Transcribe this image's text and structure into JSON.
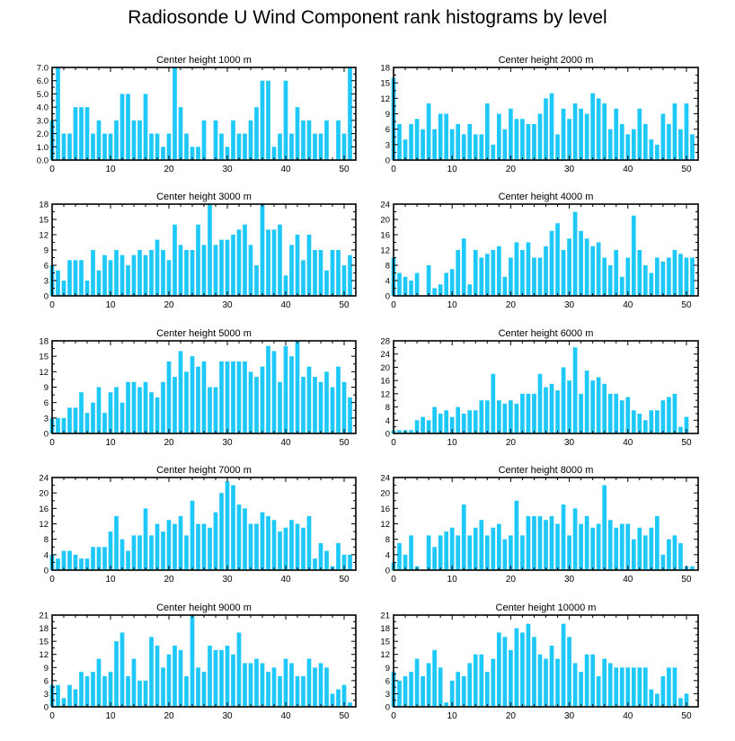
{
  "title": "Radiosonde U Wind Component rank histograms by level",
  "colors": {
    "bar": "#1ec8f8",
    "axis": "#000000",
    "background": "#ffffff"
  },
  "chart_data": [
    {
      "type": "bar",
      "title": "Center height 1000 m",
      "xlim": [
        0,
        52
      ],
      "ylim": [
        0,
        7
      ],
      "xticks": [
        0,
        10,
        20,
        30,
        40,
        50
      ],
      "yticks": [
        0,
        1,
        2,
        3,
        4,
        5,
        6,
        7
      ],
      "ytick_labels": [
        "0.0",
        "1.0",
        "2.0",
        "3.0",
        "4.0",
        "5.0",
        "6.0",
        "7.0"
      ],
      "values": [
        3,
        7,
        2,
        2,
        4,
        4,
        4,
        2,
        3,
        2,
        2,
        3,
        5,
        5,
        3,
        3,
        5,
        2,
        2,
        1,
        2,
        7,
        4,
        2,
        1,
        1,
        3,
        0,
        3,
        2,
        1,
        3,
        2,
        2,
        3,
        4,
        6,
        6,
        1,
        2,
        6,
        2,
        4,
        3,
        3,
        2,
        2,
        3,
        0,
        3,
        2,
        7
      ]
    },
    {
      "type": "bar",
      "title": "Center height 2000 m",
      "xlim": [
        0,
        52
      ],
      "ylim": [
        0,
        18
      ],
      "xticks": [
        0,
        10,
        20,
        30,
        40,
        50
      ],
      "yticks": [
        0,
        3,
        6,
        9,
        12,
        15,
        18
      ],
      "ytick_labels": [
        "0",
        "3",
        "6",
        "9",
        "12",
        "15",
        "18"
      ],
      "values": [
        16,
        7,
        4,
        7,
        8,
        6,
        11,
        6,
        9,
        9,
        6,
        7,
        5,
        7,
        5,
        5,
        11,
        3,
        9,
        6,
        10,
        8,
        8,
        7,
        7,
        9,
        12,
        13,
        5,
        10,
        8,
        11,
        10,
        9,
        13,
        12,
        11,
        6,
        10,
        7,
        5,
        6,
        10,
        7,
        4,
        3,
        9,
        7,
        11,
        6,
        11,
        5
      ]
    },
    {
      "type": "bar",
      "title": "Center height 3000 m",
      "xlim": [
        0,
        52
      ],
      "ylim": [
        0,
        18
      ],
      "xticks": [
        0,
        10,
        20,
        30,
        40,
        50
      ],
      "yticks": [
        0,
        3,
        6,
        9,
        12,
        15,
        18
      ],
      "ytick_labels": [
        "0",
        "3",
        "6",
        "9",
        "12",
        "15",
        "18"
      ],
      "values": [
        6,
        5,
        3,
        7,
        7,
        7,
        3,
        9,
        5,
        8,
        7,
        9,
        8,
        6,
        8,
        9,
        8,
        9,
        11,
        9,
        7,
        14,
        10,
        9,
        9,
        14,
        10,
        18,
        10,
        11,
        11,
        12,
        13,
        14,
        10,
        6,
        18,
        13,
        13,
        14,
        4,
        10,
        12,
        7,
        12,
        9,
        9,
        5,
        9,
        9,
        6,
        8
      ]
    },
    {
      "type": "bar",
      "title": "Center height 4000 m",
      "xlim": [
        0,
        52
      ],
      "ylim": [
        0,
        24
      ],
      "xticks": [
        0,
        10,
        20,
        30,
        40,
        50
      ],
      "yticks": [
        0,
        4,
        8,
        12,
        16,
        20,
        24
      ],
      "ytick_labels": [
        "0",
        "4",
        "8",
        "12",
        "16",
        "20",
        "24"
      ],
      "values": [
        10,
        6,
        5,
        4,
        6,
        0,
        8,
        2,
        3,
        6,
        7,
        12,
        15,
        3,
        12,
        10,
        11,
        12,
        13,
        5,
        10,
        14,
        12,
        14,
        10,
        10,
        13,
        17,
        19,
        12,
        15,
        22,
        17,
        15,
        13,
        14,
        10,
        8,
        12,
        5,
        10,
        21,
        12,
        8,
        6,
        10,
        9,
        10,
        12,
        11,
        10,
        10
      ]
    },
    {
      "type": "bar",
      "title": "Center height 5000 m",
      "xlim": [
        0,
        52
      ],
      "ylim": [
        0,
        18
      ],
      "xticks": [
        0,
        10,
        20,
        30,
        40,
        50
      ],
      "yticks": [
        0,
        3,
        6,
        9,
        12,
        15,
        18
      ],
      "ytick_labels": [
        "0",
        "3",
        "6",
        "9",
        "12",
        "15",
        "18"
      ],
      "values": [
        3,
        3,
        3,
        5,
        5,
        8,
        4,
        6,
        9,
        4,
        8,
        9,
        6,
        10,
        10,
        9,
        10,
        8,
        7,
        10,
        14,
        11,
        16,
        12,
        15,
        13,
        14,
        9,
        9,
        14,
        14,
        14,
        14,
        14,
        12,
        11,
        13,
        17,
        16,
        10,
        17,
        15,
        18,
        11,
        13,
        11,
        10,
        12,
        9,
        13,
        10,
        7
      ]
    },
    {
      "type": "bar",
      "title": "Center height 6000 m",
      "xlim": [
        0,
        52
      ],
      "ylim": [
        0,
        28
      ],
      "xticks": [
        0,
        10,
        20,
        30,
        40,
        50
      ],
      "yticks": [
        0,
        4,
        8,
        12,
        16,
        20,
        24,
        28
      ],
      "ytick_labels": [
        "0",
        "4",
        "8",
        "12",
        "16",
        "20",
        "24",
        "28"
      ],
      "values": [
        1,
        1,
        1,
        1,
        4,
        5,
        4,
        8,
        6,
        7,
        5,
        8,
        6,
        7,
        7,
        10,
        10,
        18,
        10,
        9,
        10,
        9,
        12,
        12,
        12,
        18,
        14,
        15,
        13,
        20,
        16,
        26,
        12,
        19,
        16,
        17,
        15,
        12,
        12,
        10,
        11,
        7,
        6,
        4,
        7,
        7,
        10,
        11,
        12,
        2,
        5,
        0
      ]
    },
    {
      "type": "bar",
      "title": "Center height 7000 m",
      "xlim": [
        0,
        52
      ],
      "ylim": [
        0,
        24
      ],
      "xticks": [
        0,
        10,
        20,
        30,
        40,
        50
      ],
      "yticks": [
        0,
        4,
        8,
        12,
        16,
        20,
        24
      ],
      "ytick_labels": [
        "0",
        "4",
        "8",
        "12",
        "16",
        "20",
        "24"
      ],
      "values": [
        4,
        3,
        5,
        5,
        4,
        3,
        3,
        6,
        6,
        6,
        10,
        14,
        8,
        5,
        9,
        9,
        16,
        9,
        12,
        10,
        13,
        12,
        14,
        9,
        18,
        12,
        12,
        11,
        15,
        20,
        23,
        22,
        17,
        16,
        12,
        12,
        15,
        14,
        13,
        10,
        11,
        13,
        12,
        11,
        14,
        3,
        7,
        5,
        1,
        7,
        4,
        4
      ]
    },
    {
      "type": "bar",
      "title": "Center height 8000 m",
      "xlim": [
        0,
        52
      ],
      "ylim": [
        0,
        24
      ],
      "xticks": [
        0,
        10,
        20,
        30,
        40,
        50
      ],
      "yticks": [
        0,
        4,
        8,
        12,
        16,
        20,
        24
      ],
      "ytick_labels": [
        "0",
        "4",
        "8",
        "12",
        "16",
        "20",
        "24"
      ],
      "values": [
        2,
        7,
        4,
        9,
        1,
        0,
        9,
        6,
        9,
        10,
        11,
        9,
        17,
        9,
        11,
        13,
        9,
        11,
        12,
        8,
        9,
        18,
        9,
        14,
        14,
        14,
        13,
        14,
        12,
        17,
        9,
        16,
        12,
        14,
        11,
        12,
        22,
        13,
        11,
        12,
        12,
        8,
        11,
        9,
        11,
        14,
        4,
        8,
        9,
        7,
        1,
        1
      ]
    },
    {
      "type": "bar",
      "title": "Center height 9000 m",
      "xlim": [
        0,
        52
      ],
      "ylim": [
        0,
        21
      ],
      "xticks": [
        0,
        10,
        20,
        30,
        40,
        50
      ],
      "yticks": [
        0,
        3,
        6,
        9,
        12,
        15,
        18,
        21
      ],
      "ytick_labels": [
        "0",
        "3",
        "6",
        "9",
        "12",
        "15",
        "18",
        "21"
      ],
      "values": [
        5,
        5,
        2,
        5,
        4,
        8,
        7,
        8,
        11,
        7,
        8,
        15,
        17,
        7,
        11,
        6,
        6,
        16,
        14,
        9,
        12,
        14,
        13,
        7,
        21,
        9,
        8,
        14,
        13,
        13,
        14,
        12,
        17,
        10,
        10,
        11,
        10,
        8,
        9,
        7,
        11,
        10,
        7,
        7,
        11,
        9,
        10,
        9,
        3,
        4,
        5,
        1
      ]
    },
    {
      "type": "bar",
      "title": "Center height 10000 m",
      "xlim": [
        0,
        52
      ],
      "ylim": [
        0,
        21
      ],
      "xticks": [
        0,
        10,
        20,
        30,
        40,
        50
      ],
      "yticks": [
        0,
        3,
        6,
        9,
        12,
        15,
        18,
        21
      ],
      "ytick_labels": [
        "0",
        "3",
        "6",
        "9",
        "12",
        "15",
        "18",
        "21"
      ],
      "values": [
        8,
        6,
        7,
        8,
        11,
        7,
        10,
        13,
        9,
        1,
        6,
        8,
        7,
        10,
        12,
        12,
        8,
        11,
        17,
        16,
        13,
        18,
        17,
        19,
        16,
        12,
        11,
        14,
        11,
        19,
        16,
        10,
        8,
        12,
        12,
        7,
        11,
        10,
        9,
        9,
        9,
        9,
        9,
        9,
        4,
        3,
        7,
        9,
        9,
        2,
        3,
        0
      ]
    }
  ]
}
